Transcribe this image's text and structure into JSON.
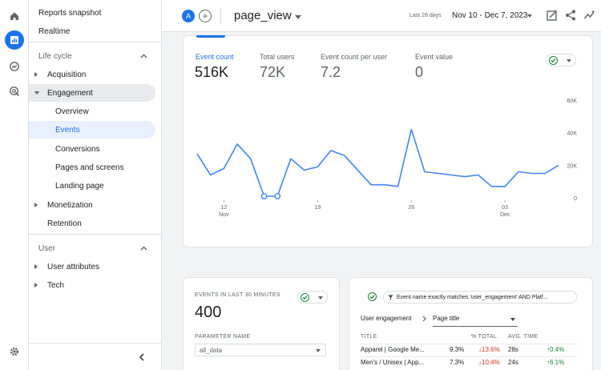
{
  "sidebar": {
    "top_items": [
      {
        "label": "Reports snapshot"
      },
      {
        "label": "Realtime"
      }
    ],
    "section_lifecycle": "Life cycle",
    "lifecycle_items": [
      {
        "label": "Acquisition"
      },
      {
        "label": "Engagement"
      },
      {
        "label": "Overview"
      },
      {
        "label": "Events"
      },
      {
        "label": "Conversions"
      },
      {
        "label": "Pages and screens"
      },
      {
        "label": "Landing page"
      },
      {
        "label": "Monetization"
      },
      {
        "label": "Retention"
      }
    ],
    "section_user": "User",
    "user_items": [
      {
        "label": "User attributes"
      },
      {
        "label": "Tech"
      }
    ],
    "collapse_icon": "chevron-left-icon"
  },
  "topbar": {
    "avatar_letter": "A",
    "plus_label": "+",
    "page_title": "page_view",
    "range_label": "Last 28 days",
    "range_value": "Nov 10 - Dec 7, 2023"
  },
  "metrics": [
    {
      "label": "Event count",
      "value": "516K"
    },
    {
      "label": "Total users",
      "value": "72K"
    },
    {
      "label": "Event count per user",
      "value": "7.2"
    },
    {
      "label": "Event value",
      "value": "0"
    }
  ],
  "colors": {
    "accent": "#1a73e8",
    "line": "#4285f4",
    "positive": "#188038",
    "negative": "#d93025"
  },
  "chart_data": {
    "type": "line",
    "y_ticks": [
      "60K",
      "40K",
      "20K",
      "0"
    ],
    "ylim": [
      0,
      60000
    ],
    "x_ticks": [
      {
        "label": "12",
        "sub": "Nov",
        "index": 2
      },
      {
        "label": "19",
        "sub": "",
        "index": 9
      },
      {
        "label": "26",
        "sub": "",
        "index": 16
      },
      {
        "label": "03",
        "sub": "Dec",
        "index": 23
      }
    ],
    "series": [
      {
        "values": [
          27000,
          14000,
          18000,
          33000,
          24000,
          1000,
          1000,
          24000,
          17000,
          19000,
          29000,
          26000,
          17000,
          8000,
          8000,
          7000,
          42000,
          16000,
          15000,
          14000,
          13000,
          14000,
          7000,
          7000,
          16000,
          15000,
          15000,
          20000
        ]
      }
    ]
  },
  "realtime_card": {
    "title": "EVENTS IN LAST 30 MINUTES",
    "value": "400",
    "param_label": "PARAMETER NAME",
    "param_value": "all_data"
  },
  "table_card": {
    "filter_text": "Event name exactly matches 'user_engagement' AND Platf...",
    "breadcrumb_1": "User engagement",
    "breadcrumb_2": "Page title",
    "columns": [
      "TITLE",
      "% TOTAL",
      "AVG. TIME"
    ],
    "rows": [
      {
        "title": "Apparel | Google Me...",
        "pct": "9.3%",
        "change": "13.6%",
        "time": "28s",
        "time_change": "0.4%"
      },
      {
        "title": "Men's / Unisex | App...",
        "pct": "7.3%",
        "change": "10.4%",
        "time": "24s",
        "time_change": "6.1%"
      }
    ]
  }
}
